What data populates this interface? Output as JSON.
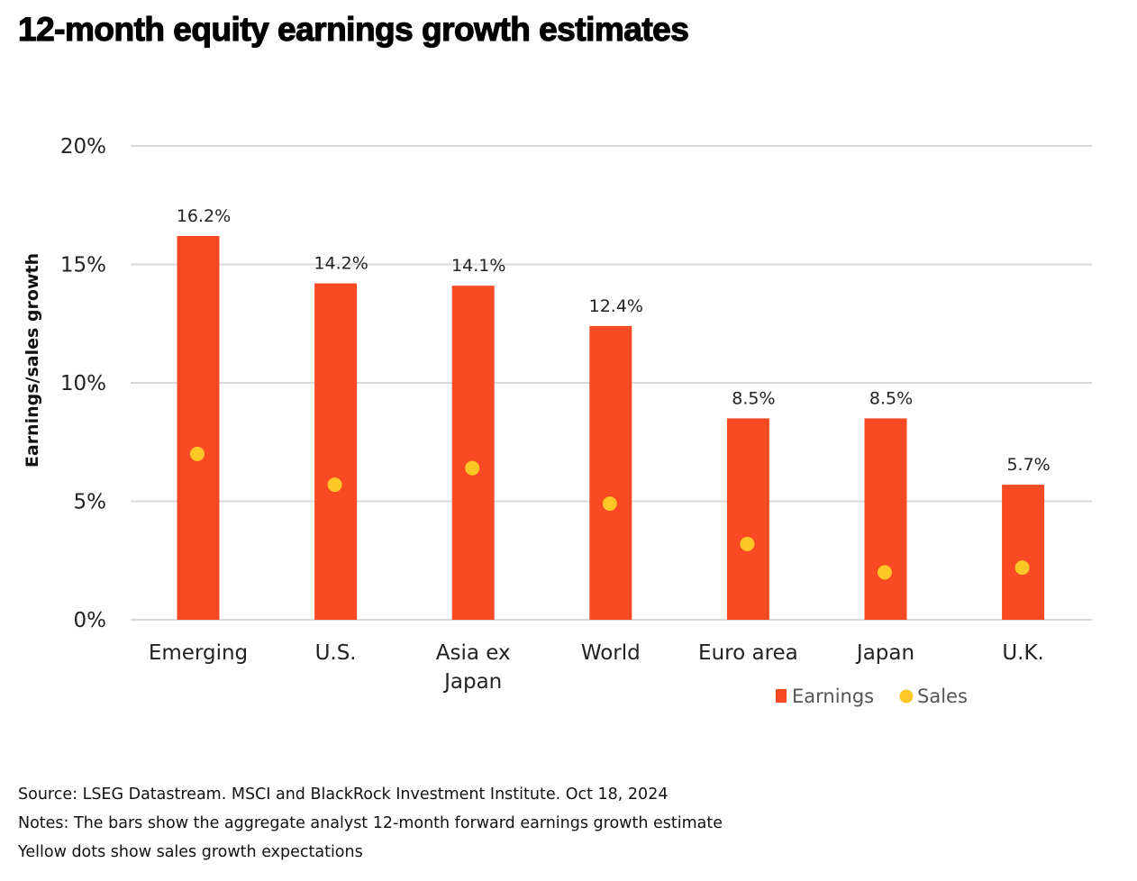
{
  "page": {
    "title": "12-month equity earnings growth estimates",
    "footer": {
      "source": "Source: LSEG Datastream. MSCI and BlackRock Investment Institute. Oct 18, 2024",
      "notes": "Notes: The bars show the aggregate analyst 12-month forward earnings growth estimate",
      "dots": "Yellow dots show sales growth expectations"
    }
  },
  "colors": {
    "earnings": "#FA4A24",
    "sales": "#FFC726",
    "grid": "#D9D9D9"
  },
  "chart_data": {
    "type": "bar",
    "title": "12-month equity earnings growth estimates",
    "xlabel": "",
    "ylabel": "Earnings/sales growth",
    "ylim": [
      0,
      20
    ],
    "yticks": [
      0,
      5,
      10,
      15,
      20
    ],
    "ytick_labels": [
      "0%",
      "5%",
      "10%",
      "15%",
      "20%"
    ],
    "grid": true,
    "legend_position": "bottom-right",
    "categories": [
      "Emerging",
      "U.S.",
      "Asia ex Japan",
      "World",
      "Euro area",
      "Japan",
      "U.K."
    ],
    "category_lines": [
      [
        "Emerging"
      ],
      [
        "U.S."
      ],
      [
        "Asia ex",
        "Japan"
      ],
      [
        "World"
      ],
      [
        "Euro area"
      ],
      [
        "Japan"
      ],
      [
        "U.K."
      ]
    ],
    "series": [
      {
        "name": "Earnings",
        "type": "bar",
        "values": [
          16.2,
          14.2,
          14.1,
          12.4,
          8.5,
          8.5,
          5.7
        ],
        "labels": [
          "16.2%",
          "14.2%",
          "14.1%",
          "12.4%",
          "8.5%",
          "8.5%",
          "5.7%"
        ]
      },
      {
        "name": "Sales",
        "type": "scatter",
        "values": [
          7.0,
          5.7,
          6.4,
          4.9,
          3.2,
          2.0,
          2.2
        ]
      }
    ]
  }
}
